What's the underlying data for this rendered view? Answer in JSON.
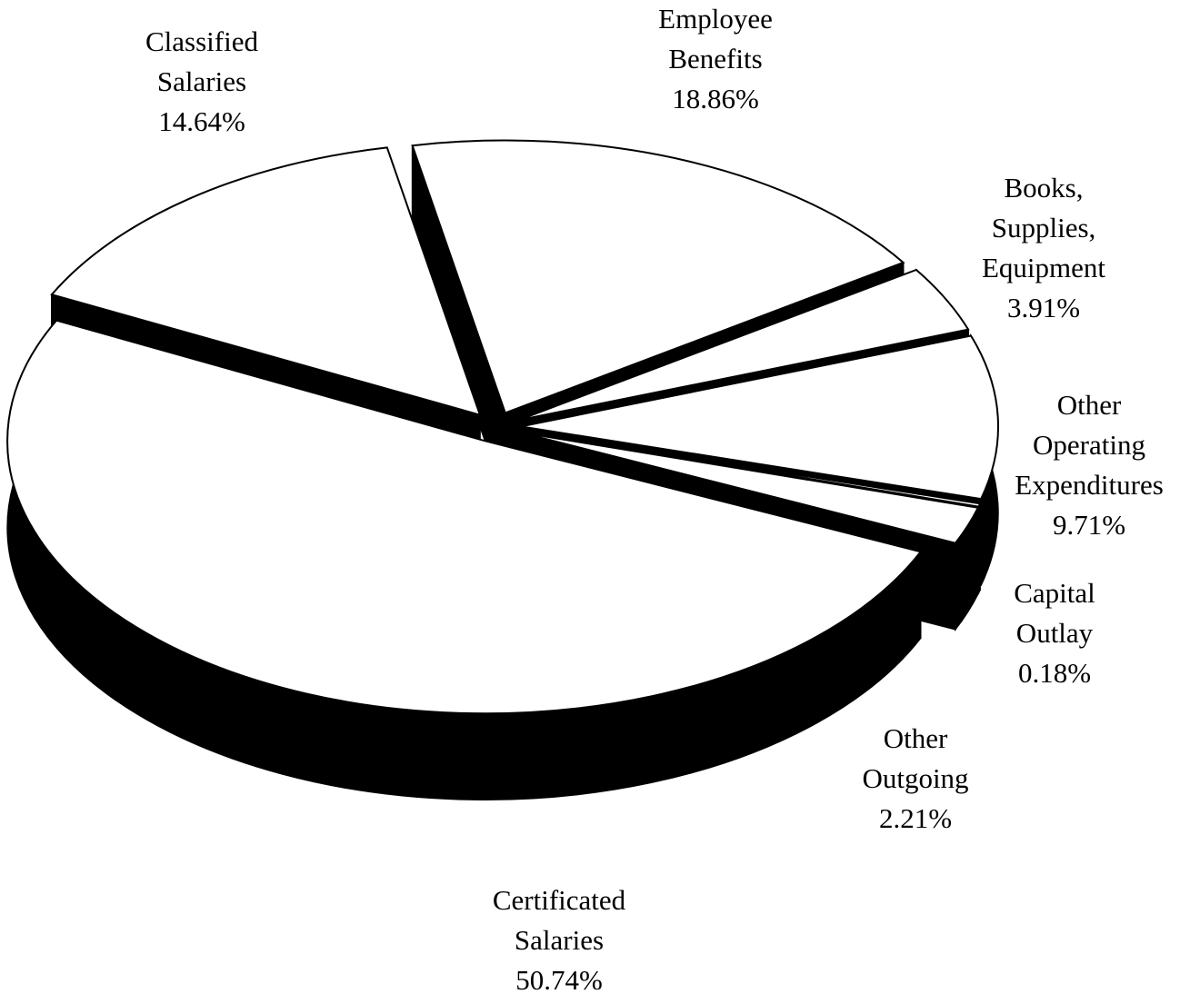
{
  "chart_data": {
    "type": "pie",
    "categories": [
      "Certificated Salaries",
      "Classified Salaries",
      "Employee Benefits",
      "Books, Supplies, Equipment",
      "Other Operating Expenditures",
      "Capital Outlay",
      "Other Outgoing"
    ],
    "values": [
      50.74,
      14.64,
      18.86,
      3.91,
      9.71,
      0.18,
      2.21
    ],
    "value_labels": [
      "50.74%",
      "14.64%",
      "18.86%",
      "3.91%",
      "9.71%",
      "0.18%",
      "2.21%"
    ],
    "colors": [
      "#ffffff",
      "#ffffff",
      "#ffffff",
      "#ffffff",
      "#ffffff",
      "#ffffff",
      "#ffffff"
    ],
    "side_color": "#000000"
  }
}
